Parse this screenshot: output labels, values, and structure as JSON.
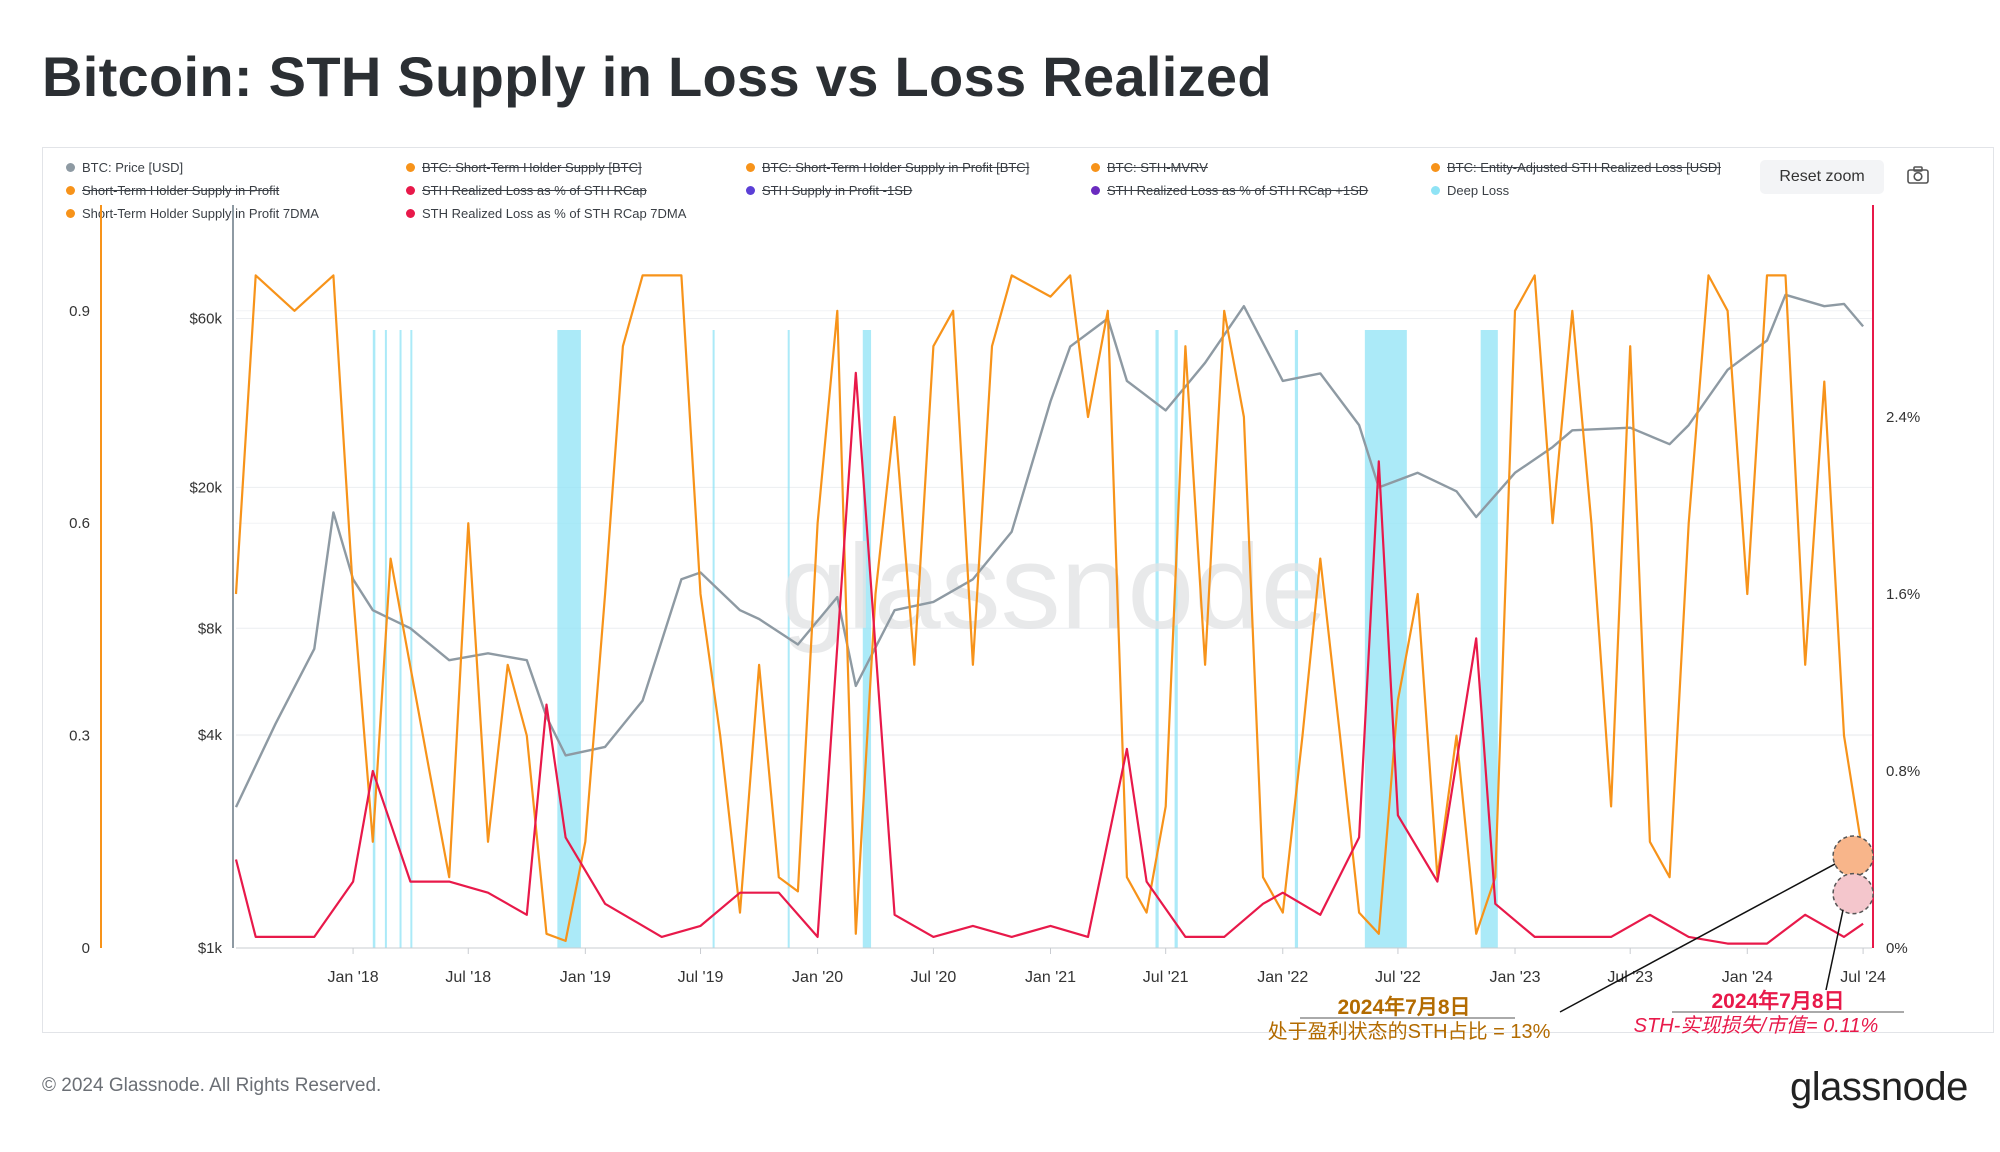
{
  "title": "Bitcoin: STH Supply in Loss vs Loss Realized",
  "footer": "© 2024 Glassnode. All Rights Reserved.",
  "brand": "glassnode",
  "watermark": "glassnode",
  "toolbar": {
    "reset_zoom": "Reset zoom",
    "camera_icon": "camera-icon"
  },
  "legend": [
    {
      "label": "BTC: Price [USD]",
      "color": "#8e9aa3",
      "struck": false
    },
    {
      "label": "BTC: Short-Term Holder Supply [BTC]",
      "color": "#f7931a",
      "struck": true
    },
    {
      "label": "BTC: Short-Term Holder Supply in Profit [BTC]",
      "color": "#f7931a",
      "struck": true
    },
    {
      "label": "BTC: STH-MVRV",
      "color": "#f7931a",
      "struck": true
    },
    {
      "label": "BTC: Entity-Adjusted STH Realized Loss [USD]",
      "color": "#f7931a",
      "struck": true
    },
    {
      "label": "Short-Term Holder Supply in Profit",
      "color": "#f7931a",
      "struck": true
    },
    {
      "label": "STH Realized Loss as % of STH RCap",
      "color": "#e8194a",
      "struck": true
    },
    {
      "label": "STH Supply in Profit -1SD",
      "color": "#5b3fd6",
      "struck": true
    },
    {
      "label": "STH Realized Loss as % of STH RCap +1SD",
      "color": "#6a2bbf",
      "struck": true
    },
    {
      "label": "Deep Loss",
      "color": "#8fe3f5",
      "struck": false
    },
    {
      "label": "Short-Term Holder Supply in Profit 7DMA",
      "color": "#f7931a",
      "struck": false
    },
    {
      "label": "STH Realized Loss as % of STH RCap 7DMA",
      "color": "#e8194a",
      "struck": false
    }
  ],
  "annotations": [
    {
      "date": "2024年7月8日",
      "text": "处于盈利状态的STH占比 = 13%",
      "color": "#b36b00"
    },
    {
      "date": "2024年7月8日",
      "text": "STH-实现损失/市值= 0.11%",
      "color": "#e8194a"
    }
  ],
  "colors": {
    "price": "#8e9aa3",
    "orange": "#f7931a",
    "red": "#e8194a",
    "cyan": "#8fe3f5"
  },
  "chart_data": {
    "type": "line",
    "x_ticks": [
      "Jan '18",
      "Jul '18",
      "Jan '19",
      "Jul '19",
      "Jan '20",
      "Jul '20",
      "Jan '21",
      "Jul '21",
      "Jan '22",
      "Jul '22",
      "Jan '23",
      "Jul '23",
      "Jan '24",
      "Jul '24"
    ],
    "x_range": [
      "2017-07",
      "2024-07"
    ],
    "y_left_ticks": [
      "0",
      "0.3",
      "0.6",
      "0.9"
    ],
    "y_left_range": [
      0,
      1.0
    ],
    "y_price_ticks": [
      "$1k",
      "$4k",
      "$8k",
      "$20k",
      "$60k"
    ],
    "y_price_scale": "log",
    "y_price_range": [
      1000,
      100000
    ],
    "y_right_ticks": [
      "0%",
      "0.8%",
      "1.6%",
      "2.4%"
    ],
    "y_right_range": [
      0,
      3.2
    ],
    "series": [
      {
        "name": "BTC: Price [USD]",
        "axis": "price",
        "points": [
          [
            "2017-07",
            2500
          ],
          [
            "2017-09",
            4300
          ],
          [
            "2017-11",
            7000
          ],
          [
            "2017-12",
            17000
          ],
          [
            "2018-01",
            11000
          ],
          [
            "2018-02",
            9000
          ],
          [
            "2018-04",
            8000
          ],
          [
            "2018-06",
            6500
          ],
          [
            "2018-08",
            6800
          ],
          [
            "2018-10",
            6500
          ],
          [
            "2018-11",
            4500
          ],
          [
            "2018-12",
            3500
          ],
          [
            "2019-02",
            3700
          ],
          [
            "2019-04",
            5000
          ],
          [
            "2019-06",
            11000
          ],
          [
            "2019-07",
            11500
          ],
          [
            "2019-09",
            9000
          ],
          [
            "2019-10",
            8500
          ],
          [
            "2019-12",
            7200
          ],
          [
            "2020-02",
            9800
          ],
          [
            "2020-03",
            5500
          ],
          [
            "2020-05",
            9000
          ],
          [
            "2020-07",
            9500
          ],
          [
            "2020-09",
            11000
          ],
          [
            "2020-11",
            15000
          ],
          [
            "2021-01",
            35000
          ],
          [
            "2021-02",
            50000
          ],
          [
            "2021-04",
            60000
          ],
          [
            "2021-05",
            40000
          ],
          [
            "2021-07",
            33000
          ],
          [
            "2021-09",
            45000
          ],
          [
            "2021-11",
            65000
          ],
          [
            "2022-01",
            40000
          ],
          [
            "2022-03",
            42000
          ],
          [
            "2022-05",
            30000
          ],
          [
            "2022-06",
            20000
          ],
          [
            "2022-08",
            22000
          ],
          [
            "2022-10",
            19500
          ],
          [
            "2022-11",
            16500
          ],
          [
            "2023-01",
            22000
          ],
          [
            "2023-03",
            26000
          ],
          [
            "2023-04",
            29000
          ],
          [
            "2023-07",
            29500
          ],
          [
            "2023-09",
            26500
          ],
          [
            "2023-10",
            30000
          ],
          [
            "2023-12",
            43000
          ],
          [
            "2024-02",
            52000
          ],
          [
            "2024-03",
            70000
          ],
          [
            "2024-05",
            65000
          ],
          [
            "2024-06",
            66000
          ],
          [
            "2024-07",
            57000
          ]
        ]
      },
      {
        "name": "Short-Term Holder Supply in Profit 7DMA",
        "axis": "left",
        "points": [
          [
            "2017-07",
            0.5
          ],
          [
            "2017-08",
            0.95
          ],
          [
            "2017-10",
            0.9
          ],
          [
            "2017-12",
            0.95
          ],
          [
            "2018-01",
            0.5
          ],
          [
            "2018-02",
            0.15
          ],
          [
            "2018-03",
            0.55
          ],
          [
            "2018-05",
            0.25
          ],
          [
            "2018-06",
            0.1
          ],
          [
            "2018-07",
            0.6
          ],
          [
            "2018-08",
            0.15
          ],
          [
            "2018-09",
            0.4
          ],
          [
            "2018-10",
            0.3
          ],
          [
            "2018-11",
            0.02
          ],
          [
            "2018-12",
            0.01
          ],
          [
            "2019-01",
            0.15
          ],
          [
            "2019-02",
            0.5
          ],
          [
            "2019-03",
            0.85
          ],
          [
            "2019-04",
            0.95
          ],
          [
            "2019-06",
            0.95
          ],
          [
            "2019-07",
            0.5
          ],
          [
            "2019-08",
            0.3
          ],
          [
            "2019-09",
            0.05
          ],
          [
            "2019-10",
            0.4
          ],
          [
            "2019-11",
            0.1
          ],
          [
            "2019-12",
            0.08
          ],
          [
            "2020-01",
            0.6
          ],
          [
            "2020-02",
            0.9
          ],
          [
            "2020-03",
            0.02
          ],
          [
            "2020-04",
            0.5
          ],
          [
            "2020-05",
            0.75
          ],
          [
            "2020-06",
            0.4
          ],
          [
            "2020-07",
            0.85
          ],
          [
            "2020-08",
            0.9
          ],
          [
            "2020-09",
            0.4
          ],
          [
            "2020-10",
            0.85
          ],
          [
            "2020-11",
            0.95
          ],
          [
            "2021-01",
            0.92
          ],
          [
            "2021-02",
            0.95
          ],
          [
            "2021-03",
            0.75
          ],
          [
            "2021-04",
            0.9
          ],
          [
            "2021-05",
            0.1
          ],
          [
            "2021-06",
            0.05
          ],
          [
            "2021-07",
            0.2
          ],
          [
            "2021-08",
            0.85
          ],
          [
            "2021-09",
            0.4
          ],
          [
            "2021-10",
            0.9
          ],
          [
            "2021-11",
            0.75
          ],
          [
            "2021-12",
            0.1
          ],
          [
            "2022-01",
            0.05
          ],
          [
            "2022-02",
            0.3
          ],
          [
            "2022-03",
            0.55
          ],
          [
            "2022-04",
            0.3
          ],
          [
            "2022-05",
            0.05
          ],
          [
            "2022-06",
            0.02
          ],
          [
            "2022-07",
            0.35
          ],
          [
            "2022-08",
            0.5
          ],
          [
            "2022-09",
            0.1
          ],
          [
            "2022-10",
            0.3
          ],
          [
            "2022-11",
            0.02
          ],
          [
            "2022-12",
            0.1
          ],
          [
            "2023-01",
            0.9
          ],
          [
            "2023-02",
            0.95
          ],
          [
            "2023-03",
            0.6
          ],
          [
            "2023-04",
            0.9
          ],
          [
            "2023-05",
            0.6
          ],
          [
            "2023-06",
            0.2
          ],
          [
            "2023-07",
            0.85
          ],
          [
            "2023-08",
            0.15
          ],
          [
            "2023-09",
            0.1
          ],
          [
            "2023-10",
            0.6
          ],
          [
            "2023-11",
            0.95
          ],
          [
            "2023-12",
            0.9
          ],
          [
            "2024-01",
            0.5
          ],
          [
            "2024-02",
            0.95
          ],
          [
            "2024-03",
            0.95
          ],
          [
            "2024-04",
            0.4
          ],
          [
            "2024-05",
            0.8
          ],
          [
            "2024-06",
            0.3
          ],
          [
            "2024-07",
            0.13
          ]
        ]
      },
      {
        "name": "STH Realized Loss as % of STH RCap 7DMA",
        "axis": "right",
        "points": [
          [
            "2017-07",
            0.4
          ],
          [
            "2017-08",
            0.05
          ],
          [
            "2017-11",
            0.05
          ],
          [
            "2018-01",
            0.3
          ],
          [
            "2018-02",
            0.8
          ],
          [
            "2018-04",
            0.3
          ],
          [
            "2018-06",
            0.3
          ],
          [
            "2018-08",
            0.25
          ],
          [
            "2018-10",
            0.15
          ],
          [
            "2018-11",
            1.1
          ],
          [
            "2018-12",
            0.5
          ],
          [
            "2019-02",
            0.2
          ],
          [
            "2019-05",
            0.05
          ],
          [
            "2019-07",
            0.1
          ],
          [
            "2019-09",
            0.25
          ],
          [
            "2019-11",
            0.25
          ],
          [
            "2020-01",
            0.05
          ],
          [
            "2020-03",
            2.6
          ],
          [
            "2020-05",
            0.15
          ],
          [
            "2020-07",
            0.05
          ],
          [
            "2020-09",
            0.1
          ],
          [
            "2020-11",
            0.05
          ],
          [
            "2021-01",
            0.1
          ],
          [
            "2021-03",
            0.05
          ],
          [
            "2021-05",
            0.9
          ],
          [
            "2021-06",
            0.3
          ],
          [
            "2021-08",
            0.05
          ],
          [
            "2021-10",
            0.05
          ],
          [
            "2021-12",
            0.2
          ],
          [
            "2022-01",
            0.25
          ],
          [
            "2022-03",
            0.15
          ],
          [
            "2022-05",
            0.5
          ],
          [
            "2022-06",
            2.2
          ],
          [
            "2022-07",
            0.6
          ],
          [
            "2022-09",
            0.3
          ],
          [
            "2022-11",
            1.4
          ],
          [
            "2022-12",
            0.2
          ],
          [
            "2023-02",
            0.05
          ],
          [
            "2023-04",
            0.05
          ],
          [
            "2023-06",
            0.05
          ],
          [
            "2023-08",
            0.15
          ],
          [
            "2023-10",
            0.05
          ],
          [
            "2023-12",
            0.02
          ],
          [
            "2024-02",
            0.02
          ],
          [
            "2024-04",
            0.15
          ],
          [
            "2024-06",
            0.05
          ],
          [
            "2024-07",
            0.11
          ]
        ]
      }
    ],
    "deep_loss_periods": [
      [
        "2018-02-01",
        "2018-02-05"
      ],
      [
        "2018-02-20",
        "2018-02-23"
      ],
      [
        "2018-03-15",
        "2018-03-18"
      ],
      [
        "2018-04-01",
        "2018-04-04"
      ],
      [
        "2018-11-18",
        "2018-12-25"
      ],
      [
        "2019-07-20",
        "2019-07-23"
      ],
      [
        "2019-11-15",
        "2019-11-18"
      ],
      [
        "2020-03-12",
        "2020-03-25"
      ],
      [
        "2021-06-15",
        "2021-06-20"
      ],
      [
        "2021-07-15",
        "2021-07-20"
      ],
      [
        "2022-01-20",
        "2022-01-25"
      ],
      [
        "2022-05-10",
        "2022-07-15"
      ],
      [
        "2022-11-08",
        "2022-12-05"
      ]
    ]
  }
}
